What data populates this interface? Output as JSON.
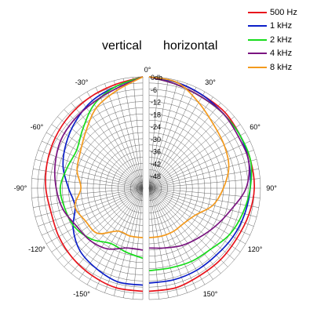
{
  "chart_data": {
    "type": "line",
    "subtype": "polar",
    "panels": [
      "vertical",
      "horizontal"
    ],
    "radial_unit": "db",
    "r_ticks": [
      "0db",
      "-6",
      "-12",
      "-18",
      "-24",
      "-30",
      "-36",
      "-42",
      "-48"
    ],
    "r_values": [
      0,
      -6,
      -12,
      -18,
      -24,
      -30,
      -36,
      -42,
      -48
    ],
    "r_range": [
      -54,
      0
    ],
    "angle_ticks_left": [
      "0°",
      "-30°",
      "-60°",
      "-90°",
      "-120°",
      "-150°"
    ],
    "angle_ticks_right": [
      "30°",
      "60°",
      "90°",
      "120°",
      "150°"
    ],
    "grid": true,
    "legend_position": "top-right",
    "series": [
      {
        "name": "500 Hz",
        "color": "#e8141c",
        "vertical": [
          [
            0,
            0
          ],
          [
            15,
            -2
          ],
          [
            30,
            -3
          ],
          [
            45,
            -4
          ],
          [
            60,
            -5
          ],
          [
            75,
            -6
          ],
          [
            90,
            -7
          ],
          [
            105,
            -8
          ],
          [
            120,
            -7
          ],
          [
            135,
            -6
          ],
          [
            150,
            -5
          ],
          [
            165,
            -4
          ],
          [
            180,
            -4
          ]
        ],
        "horizontal": [
          [
            0,
            0
          ],
          [
            15,
            -1
          ],
          [
            30,
            -2
          ],
          [
            45,
            -2
          ],
          [
            60,
            -3
          ],
          [
            75,
            -3
          ],
          [
            90,
            -3
          ],
          [
            105,
            -4
          ],
          [
            120,
            -5
          ],
          [
            135,
            -5
          ],
          [
            150,
            -5
          ],
          [
            165,
            -4
          ],
          [
            180,
            -4
          ]
        ]
      },
      {
        "name": "1 kHz",
        "color": "#0b1ec8",
        "vertical": [
          [
            0,
            0
          ],
          [
            15,
            -3
          ],
          [
            30,
            -5
          ],
          [
            45,
            -8
          ],
          [
            60,
            -11
          ],
          [
            75,
            -14
          ],
          [
            90,
            -18
          ],
          [
            105,
            -20
          ],
          [
            120,
            -15
          ],
          [
            135,
            -11
          ],
          [
            150,
            -9
          ],
          [
            165,
            -7
          ],
          [
            180,
            -7
          ]
        ],
        "horizontal": [
          [
            0,
            0
          ],
          [
            15,
            -1
          ],
          [
            30,
            -2
          ],
          [
            45,
            -3
          ],
          [
            60,
            -3
          ],
          [
            75,
            -4
          ],
          [
            90,
            -5
          ],
          [
            105,
            -6
          ],
          [
            120,
            -7
          ],
          [
            135,
            -8
          ],
          [
            150,
            -8
          ],
          [
            165,
            -8
          ],
          [
            180,
            -8
          ]
        ]
      },
      {
        "name": "2 kHz",
        "color": "#18dc1c",
        "vertical": [
          [
            0,
            0
          ],
          [
            15,
            -3
          ],
          [
            30,
            -7
          ],
          [
            45,
            -13
          ],
          [
            60,
            -17
          ],
          [
            75,
            -16
          ],
          [
            90,
            -14
          ],
          [
            105,
            -15
          ],
          [
            120,
            -16
          ],
          [
            135,
            -19
          ],
          [
            150,
            -23
          ],
          [
            165,
            -22
          ],
          [
            180,
            -20
          ]
        ],
        "horizontal": [
          [
            0,
            0
          ],
          [
            15,
            -2
          ],
          [
            30,
            -3
          ],
          [
            45,
            -3
          ],
          [
            60,
            -3
          ],
          [
            75,
            -3
          ],
          [
            90,
            -5
          ],
          [
            105,
            -7
          ],
          [
            120,
            -9
          ],
          [
            135,
            -12
          ],
          [
            150,
            -13
          ],
          [
            165,
            -14
          ],
          [
            180,
            -14
          ]
        ]
      },
      {
        "name": "4 kHz",
        "color": "#7a1480",
        "vertical": [
          [
            0,
            0
          ],
          [
            15,
            -4
          ],
          [
            30,
            -6
          ],
          [
            45,
            -7
          ],
          [
            60,
            -8
          ],
          [
            75,
            -10
          ],
          [
            90,
            -12
          ],
          [
            105,
            -14
          ],
          [
            120,
            -17
          ],
          [
            135,
            -18
          ],
          [
            150,
            -20
          ],
          [
            165,
            -24
          ],
          [
            180,
            -24
          ]
        ],
        "horizontal": [
          [
            0,
            0
          ],
          [
            15,
            -2
          ],
          [
            30,
            -3
          ],
          [
            45,
            -3
          ],
          [
            60,
            -4
          ],
          [
            75,
            -4
          ],
          [
            90,
            -7
          ],
          [
            105,
            -13
          ],
          [
            120,
            -17
          ],
          [
            135,
            -20
          ],
          [
            150,
            -22
          ],
          [
            165,
            -24
          ],
          [
            180,
            -25
          ]
        ]
      },
      {
        "name": "8 kHz",
        "color": "#f39a1e",
        "vertical": [
          [
            0,
            0
          ],
          [
            15,
            -5
          ],
          [
            30,
            -9
          ],
          [
            45,
            -15
          ],
          [
            60,
            -19
          ],
          [
            75,
            -21
          ],
          [
            90,
            -24
          ],
          [
            105,
            -20
          ],
          [
            120,
            -22
          ],
          [
            135,
            -23
          ],
          [
            150,
            -30
          ],
          [
            165,
            -30
          ],
          [
            180,
            -30
          ]
        ],
        "horizontal": [
          [
            0,
            0
          ],
          [
            15,
            -1
          ],
          [
            30,
            -6
          ],
          [
            45,
            -10
          ],
          [
            60,
            -12
          ],
          [
            75,
            -14
          ],
          [
            90,
            -18
          ],
          [
            105,
            -22
          ],
          [
            120,
            -28
          ],
          [
            135,
            -30
          ],
          [
            150,
            -30
          ],
          [
            165,
            -30
          ],
          [
            180,
            -30
          ]
        ]
      }
    ]
  }
}
